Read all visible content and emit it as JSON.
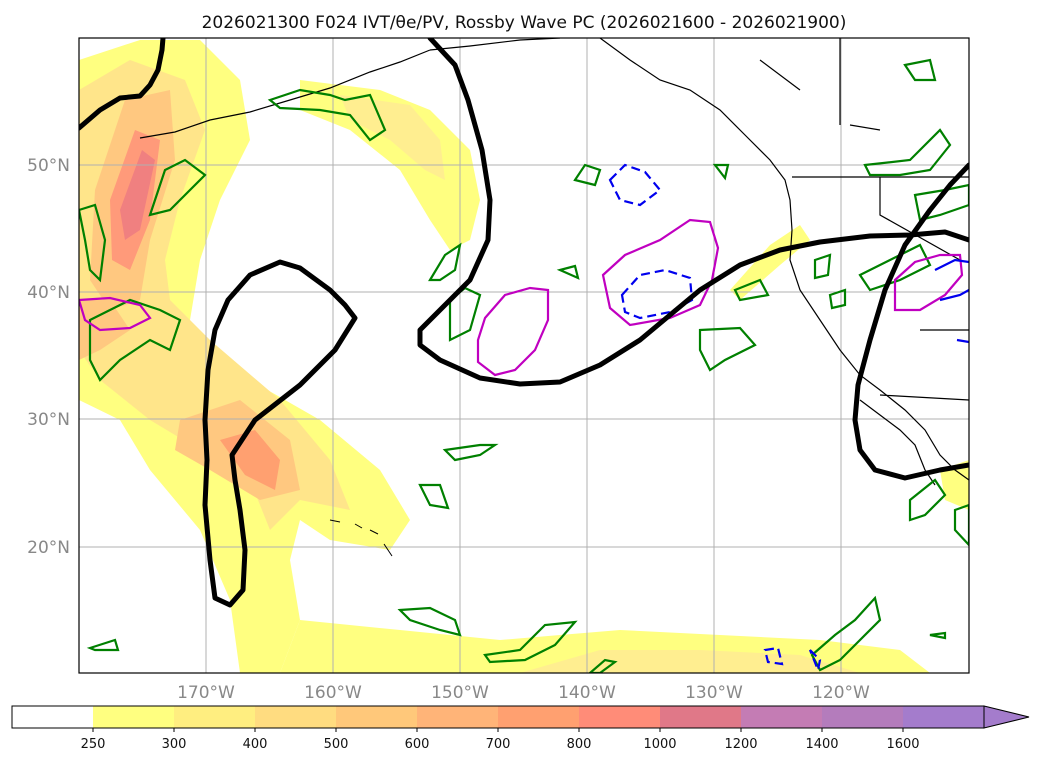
{
  "title": "2026021300 F024 IVT/θe/PV, Rossby Wave PC (2026021600 - 2026021900)",
  "map": {
    "lat_labels": [
      "50°N",
      "40°N",
      "30°N",
      "20°N"
    ],
    "lon_labels": [
      "170°W",
      "160°W",
      "150°W",
      "140°W",
      "130°W",
      "120°W"
    ]
  },
  "colorbar": {
    "ticks": [
      "250",
      "300",
      "400",
      "500",
      "600",
      "700",
      "800",
      "1000",
      "1200",
      "1400",
      "1600"
    ],
    "colors": [
      "#ffffff",
      "#ffff80",
      "#ffee80",
      "#ffdc80",
      "#ffc87a",
      "#ffb478",
      "#ffa070",
      "#ff8c78",
      "#e07888",
      "#c47cb4",
      "#b47cbc",
      "#a47ccc"
    ]
  },
  "legend_colors": {
    "rossby_contour": "#000000",
    "pv_positive": "#008000",
    "pv_magenta": "#c000c0",
    "pv_negative": "#0000ee"
  }
}
